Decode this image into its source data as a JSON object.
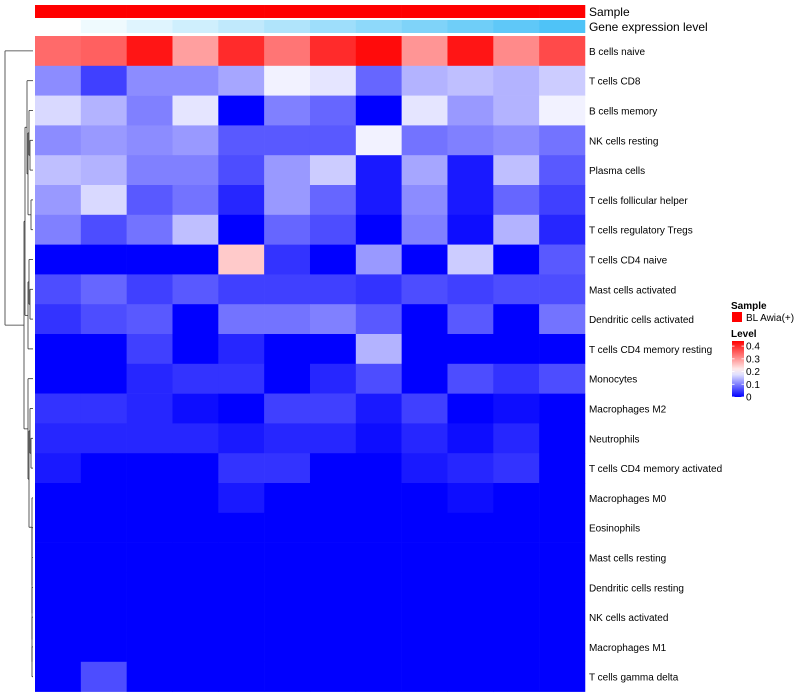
{
  "chart_data": {
    "type": "heatmap",
    "title": "",
    "annotation_tracks": [
      {
        "name": "Sample",
        "values": [
          "BL Awia(+)",
          "BL Awia(+)",
          "BL Awia(+)",
          "BL Awia(+)",
          "BL Awia(+)",
          "BL Awia(+)",
          "BL Awia(+)",
          "BL Awia(+)",
          "BL Awia(+)",
          "BL Awia(+)",
          "BL Awia(+)",
          "BL Awia(+)"
        ]
      },
      {
        "name": "Gene expression level",
        "values": [
          0.0,
          0.09,
          0.18,
          0.27,
          0.36,
          0.45,
          0.55,
          0.64,
          0.73,
          0.82,
          0.91,
          1.0
        ]
      }
    ],
    "rows": [
      "B cells naive",
      "T cells CD8",
      "B cells memory",
      "NK cells resting",
      "Plasma cells",
      "T cells follicular helper",
      "T cells regulatory  Tregs",
      "T cells CD4 naive",
      "Mast cells activated",
      "Dendritic cells activated",
      "T cells CD4 memory resting",
      "Monocytes",
      "Macrophages M2",
      "Neutrophils",
      "T cells CD4 memory activated",
      "Macrophages M0",
      "Eosinophils",
      "Mast cells resting",
      "Dendritic cells resting",
      "NK cells activated",
      "Macrophages M1",
      "T cells gamma delta"
    ],
    "values": [
      [
        0.34,
        0.35,
        0.42,
        0.29,
        0.4,
        0.33,
        0.4,
        0.43,
        0.3,
        0.42,
        0.31,
        0.37
      ],
      [
        0.11,
        0.05,
        0.11,
        0.11,
        0.13,
        0.19,
        0.18,
        0.08,
        0.14,
        0.15,
        0.14,
        0.16
      ],
      [
        0.17,
        0.14,
        0.1,
        0.18,
        0.0,
        0.1,
        0.08,
        0.0,
        0.18,
        0.12,
        0.14,
        0.19
      ],
      [
        0.11,
        0.12,
        0.11,
        0.12,
        0.07,
        0.07,
        0.07,
        0.19,
        0.09,
        0.1,
        0.11,
        0.09
      ],
      [
        0.15,
        0.14,
        0.1,
        0.1,
        0.06,
        0.12,
        0.16,
        0.02,
        0.13,
        0.02,
        0.15,
        0.07
      ],
      [
        0.12,
        0.17,
        0.07,
        0.09,
        0.03,
        0.12,
        0.08,
        0.02,
        0.11,
        0.02,
        0.08,
        0.05
      ],
      [
        0.1,
        0.06,
        0.09,
        0.15,
        0.0,
        0.08,
        0.06,
        0.0,
        0.1,
        0.01,
        0.14,
        0.03
      ],
      [
        0.0,
        0.0,
        0.0,
        0.0,
        0.25,
        0.04,
        0.0,
        0.12,
        0.0,
        0.16,
        0.0,
        0.07
      ],
      [
        0.06,
        0.08,
        0.05,
        0.07,
        0.05,
        0.05,
        0.05,
        0.04,
        0.06,
        0.05,
        0.06,
        0.06
      ],
      [
        0.04,
        0.06,
        0.07,
        0.0,
        0.09,
        0.09,
        0.1,
        0.07,
        0.0,
        0.07,
        0.0,
        0.09
      ],
      [
        0.0,
        0.0,
        0.05,
        0.0,
        0.03,
        0.0,
        0.0,
        0.14,
        0.0,
        0.0,
        0.0,
        0.0
      ],
      [
        0.0,
        0.0,
        0.03,
        0.04,
        0.04,
        0.0,
        0.03,
        0.06,
        0.0,
        0.06,
        0.04,
        0.06
      ],
      [
        0.04,
        0.04,
        0.03,
        0.01,
        0.0,
        0.05,
        0.05,
        0.02,
        0.05,
        0.0,
        0.01,
        0.0
      ],
      [
        0.03,
        0.03,
        0.03,
        0.03,
        0.02,
        0.03,
        0.03,
        0.01,
        0.03,
        0.01,
        0.03,
        0.0
      ],
      [
        0.02,
        0.0,
        0.0,
        0.0,
        0.04,
        0.04,
        0.0,
        0.0,
        0.02,
        0.03,
        0.04,
        0.0
      ],
      [
        0.0,
        0.0,
        0.0,
        0.0,
        0.02,
        0.0,
        0.0,
        0.0,
        0.0,
        0.01,
        0.0,
        0.0
      ],
      [
        0.0,
        0.0,
        0.0,
        0.0,
        0.0,
        0.0,
        0.0,
        0.0,
        0.0,
        0.0,
        0.0,
        0.0
      ],
      [
        0.0,
        0.0,
        0.0,
        0.0,
        0.0,
        0.0,
        0.0,
        0.0,
        0.0,
        0.0,
        0.0,
        0.0
      ],
      [
        0.0,
        0.0,
        0.0,
        0.0,
        0.0,
        0.0,
        0.0,
        0.0,
        0.0,
        0.0,
        0.0,
        0.0
      ],
      [
        0.0,
        0.0,
        0.0,
        0.0,
        0.0,
        0.0,
        0.0,
        0.0,
        0.0,
        0.0,
        0.0,
        0.0
      ],
      [
        0.0,
        0.0,
        0.0,
        0.0,
        0.0,
        0.0,
        0.0,
        0.0,
        0.0,
        0.0,
        0.0,
        0.0
      ],
      [
        0.0,
        0.06,
        0.0,
        0.0,
        0.0,
        0.0,
        0.0,
        0.0,
        0.0,
        0.0,
        0.0,
        0.0
      ]
    ],
    "color_scale": {
      "min": 0,
      "mid": 0.2,
      "max": 0.44,
      "low": "#0000ff",
      "midcolor": "#ffffff",
      "high": "#ff0000"
    },
    "legend": {
      "placement": "right",
      "sample_title": "Sample",
      "sample_label": "BL Awia(+)",
      "sample_color": "#ff0000",
      "level_title": "Level",
      "level_ticks": [
        0.4,
        0.3,
        0.2,
        0.1,
        0
      ],
      "level_tick_labels": [
        "0.4",
        "0.3",
        "0.2",
        "0.1",
        "0"
      ]
    },
    "annotation_colors": {
      "sample": "#ff0000",
      "expr_low": "#ffffff",
      "expr_high": "#4fc3f7"
    },
    "row_dendrogram": true
  }
}
